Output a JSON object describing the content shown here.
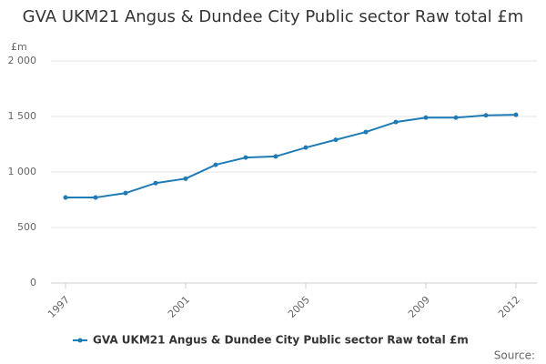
{
  "chart_data": {
    "type": "line",
    "title": "GVA UKM21 Angus & Dundee City Public sector Raw total £m",
    "y_unit": "£m",
    "source": "Source:",
    "x": [
      1997,
      1998,
      1999,
      2000,
      2001,
      2002,
      2003,
      2004,
      2005,
      2006,
      2007,
      2008,
      2009,
      2010,
      2011,
      2012
    ],
    "series": [
      {
        "name": "GVA UKM21 Angus & Dundee City Public sector Raw total £m",
        "color": "#1f7bb6",
        "values": [
          770,
          770,
          810,
          900,
          940,
          1065,
          1130,
          1140,
          1220,
          1290,
          1360,
          1450,
          1490,
          1490,
          1510,
          1515
        ]
      }
    ],
    "xlim": [
      1997,
      2012
    ],
    "xticks": [
      1997,
      2001,
      2005,
      2009,
      2012
    ],
    "ylim": [
      0,
      2000
    ],
    "yticks": [
      0,
      500,
      {
        "value": 1000,
        "label": "1 000"
      },
      {
        "value": 1500,
        "label": "1 500"
      },
      {
        "value": 2000,
        "label": "2 000"
      }
    ],
    "grid": true
  }
}
